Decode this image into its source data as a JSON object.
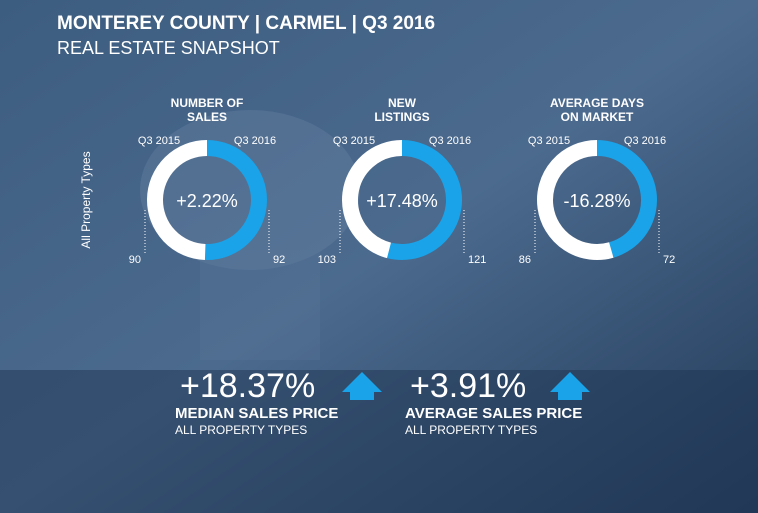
{
  "header": {
    "title": "MONTEREY COUNTY | CARMEL | Q3 2016",
    "subtitle": "REAL ESTATE SNAPSHOT"
  },
  "side_label": "All Property Types",
  "donuts": [
    {
      "title": [
        "NUMBER OF",
        "SALES"
      ],
      "left_label": "Q3 2015",
      "right_label": "Q3 2016",
      "change": "+2.22%",
      "values": [
        90,
        92
      ]
    },
    {
      "title": [
        "NEW",
        "LISTINGS"
      ],
      "left_label": "Q3 2015",
      "right_label": "Q3 2016",
      "change": "+17.48%",
      "values": [
        103,
        121
      ]
    },
    {
      "title": [
        "AVERAGE DAYS",
        "ON MARKET"
      ],
      "left_label": "Q3 2015",
      "right_label": "Q3 2016",
      "change": "-16.28%",
      "values": [
        86,
        72
      ]
    }
  ],
  "stats": [
    {
      "value": "+18.37%",
      "label": "MEDIAN SALES PRICE",
      "sublabel": "ALL PROPERTY TYPES"
    },
    {
      "value": "+3.91%",
      "label": "AVERAGE SALES PRICE",
      "sublabel": "ALL PROPERTY TYPES"
    }
  ]
}
